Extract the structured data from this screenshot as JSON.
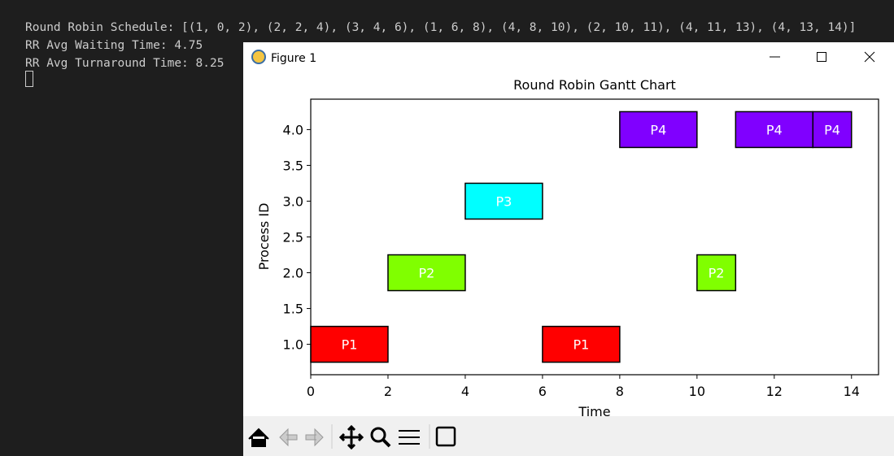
{
  "terminal": {
    "lines": [
      "Round Robin Schedule: [(1, 0, 2), (2, 2, 4), (3, 4, 6), (1, 6, 8), (4, 8, 10), (2, 10, 11), (4, 11, 13), (4, 13, 14)]",
      "RR Avg Waiting Time: 4.75",
      "RR Avg Turnaround Time: 8.25"
    ]
  },
  "window": {
    "title": "Figure 1"
  },
  "chart_data": {
    "type": "gantt",
    "title": "Round Robin Gantt Chart",
    "x_label": "Time",
    "y_label": "Process ID",
    "bar_height": 0.5,
    "edge_color": "#000000",
    "label_color": "#ffffff",
    "grid": false,
    "bars": [
      {
        "label": "P1",
        "y": 1,
        "start": 0,
        "end": 2,
        "color": "#ff0000"
      },
      {
        "label": "P2",
        "y": 2,
        "start": 2,
        "end": 4,
        "color": "#80ff00"
      },
      {
        "label": "P3",
        "y": 3,
        "start": 4,
        "end": 6,
        "color": "#00ffff"
      },
      {
        "label": "P1",
        "y": 1,
        "start": 6,
        "end": 8,
        "color": "#ff0000"
      },
      {
        "label": "P4",
        "y": 4,
        "start": 8,
        "end": 10,
        "color": "#8000ff"
      },
      {
        "label": "P2",
        "y": 2,
        "start": 10,
        "end": 11,
        "color": "#80ff00"
      },
      {
        "label": "P4",
        "y": 4,
        "start": 11,
        "end": 13,
        "color": "#8000ff"
      },
      {
        "label": "P4",
        "y": 4,
        "start": 13,
        "end": 14,
        "color": "#8000ff"
      }
    ],
    "xlim": [
      0,
      14.7
    ],
    "xticks": [
      0,
      2,
      4,
      6,
      8,
      10,
      12,
      14
    ],
    "ylim": [
      0.575,
      4.425
    ],
    "yticks": [
      {
        "value": 1,
        "label": "1.0"
      },
      {
        "value": 1.5,
        "label": "1.5"
      },
      {
        "value": 2,
        "label": "2.0"
      },
      {
        "value": 2.5,
        "label": "2.5"
      },
      {
        "value": 3,
        "label": "3.0"
      },
      {
        "value": 3.5,
        "label": "3.5"
      },
      {
        "value": 4,
        "label": "4.0"
      }
    ]
  }
}
